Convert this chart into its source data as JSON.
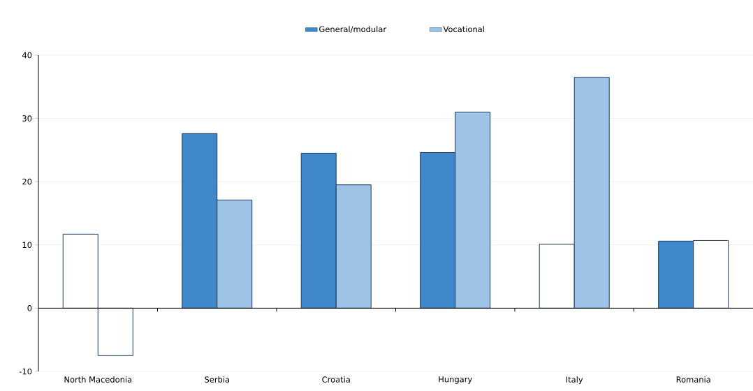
{
  "chart_data": {
    "type": "bar",
    "categories": [
      "North Macedonia",
      "Serbia",
      "Croatia",
      "Hungary",
      "Italy",
      "Romania"
    ],
    "series": [
      {
        "name": "General/modular",
        "color": "#3f88c9",
        "colors": [
          "#ffffff",
          "#3f88c9",
          "#3f88c9",
          "#3f88c9",
          "#ffffff",
          "#3f88c9"
        ],
        "values": [
          11.7,
          27.6,
          24.5,
          24.6,
          10.1,
          10.6
        ]
      },
      {
        "name": "Vocational",
        "color": "#9dc3e6",
        "colors": [
          "#ffffff",
          "#9dc3e6",
          "#9dc3e6",
          "#9dc3e6",
          "#9dc3e6",
          "#ffffff"
        ],
        "values": [
          -7.5,
          17.1,
          19.5,
          31.0,
          36.5,
          10.7
        ]
      }
    ],
    "ylim": [
      -10,
      40
    ],
    "yticks": [
      -10,
      0,
      10,
      20,
      30,
      40
    ],
    "grid": "y",
    "legend": "top"
  }
}
